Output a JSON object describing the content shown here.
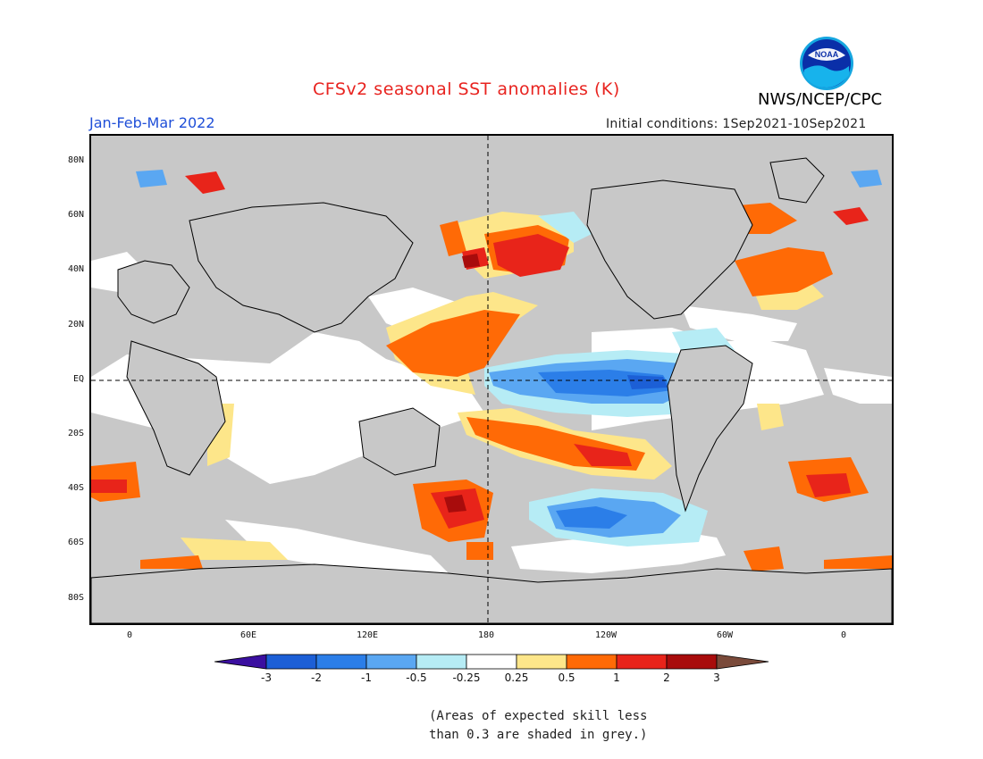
{
  "header": {
    "title": "CFSv2 seasonal SST anomalies (K)",
    "agency": "NWS/NCEP/CPC",
    "season": "Jan-Feb-Mar 2022",
    "initial_conditions": "Initial conditions: 1Sep2021-10Sep2021",
    "logo_text": "NOAA"
  },
  "map": {
    "lat_labels": [
      "80N",
      "60N",
      "40N",
      "20N",
      "EQ",
      "20S",
      "40S",
      "60S",
      "80S"
    ],
    "lon_labels": [
      "0",
      "60E",
      "120E",
      "180",
      "120W",
      "60W",
      "0"
    ],
    "land_color": "#c8c8c8",
    "no_anomaly_color": "#ffffff"
  },
  "colorbar": {
    "labels": [
      "-3",
      "-2",
      "-1",
      "-0.5",
      "-0.25",
      "0.25",
      "0.5",
      "1",
      "2",
      "3"
    ],
    "colors": [
      "#3b0fa0",
      "#1c5fd6",
      "#2b7ee8",
      "#5aa7f2",
      "#b6ecf5",
      "#ffffff",
      "#fde68a",
      "#ff6a06",
      "#e8241a",
      "#a80c0c",
      "#7a4a3a"
    ]
  },
  "footnote": {
    "line1": "(Areas of expected skill less",
    "line2": "than 0.3 are shaded in grey.)"
  }
}
